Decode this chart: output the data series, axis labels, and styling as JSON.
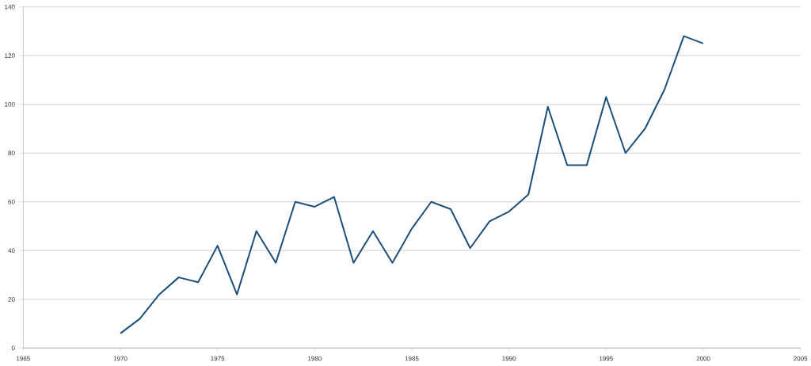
{
  "chart_data": {
    "type": "line",
    "x": [
      1970,
      1971,
      1972,
      1973,
      1974,
      1975,
      1976,
      1977,
      1978,
      1979,
      1980,
      1981,
      1982,
      1983,
      1984,
      1985,
      1986,
      1987,
      1988,
      1989,
      1990,
      1991,
      1992,
      1993,
      1994,
      1995,
      1996,
      1997,
      1998,
      1999,
      2000
    ],
    "values": [
      6,
      12,
      22,
      29,
      27,
      42,
      22,
      48,
      35,
      60,
      58,
      62,
      35,
      48,
      35,
      49,
      60,
      57,
      41,
      52,
      56,
      63,
      99,
      75,
      75,
      103,
      80,
      90,
      106,
      128,
      125
    ],
    "color": "#1c4f7c",
    "xlim": [
      1965,
      2005
    ],
    "xticks": [
      1965,
      1970,
      1975,
      1980,
      1985,
      1990,
      1995,
      2000,
      2005
    ],
    "ylim": [
      0,
      140
    ],
    "yticks": [
      0,
      20,
      40,
      60,
      80,
      100,
      120,
      140
    ],
    "grid": "y",
    "marker": "none",
    "line_style": "solid"
  }
}
